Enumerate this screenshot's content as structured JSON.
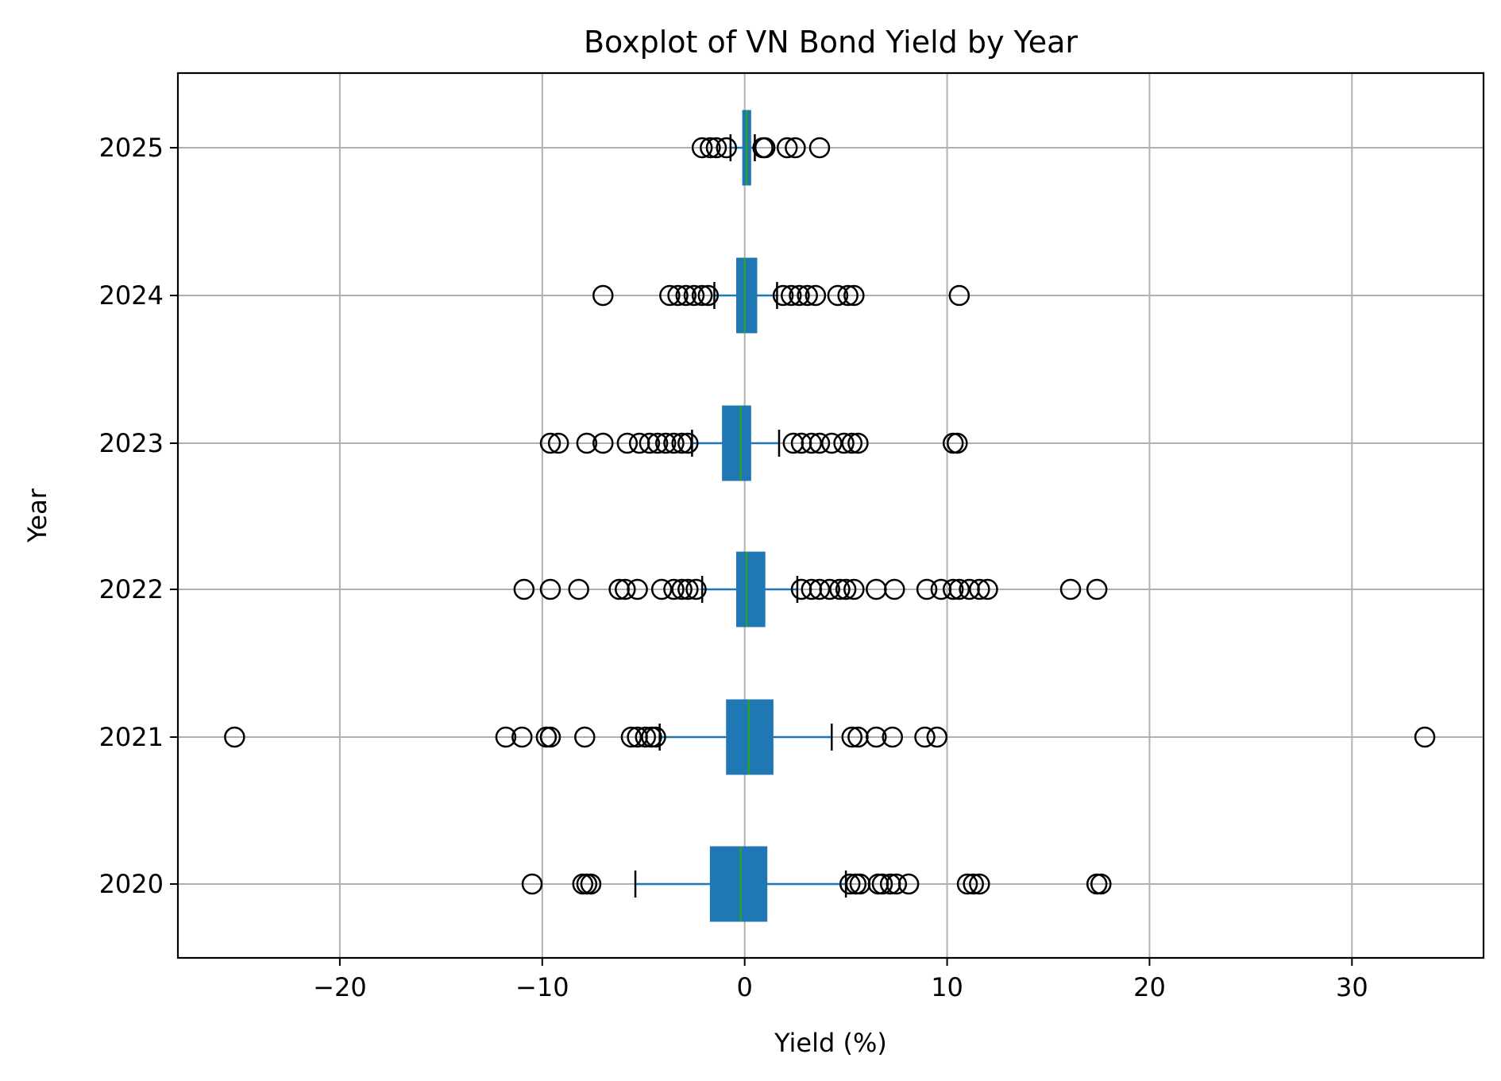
{
  "chart_data": {
    "type": "boxplot",
    "orientation": "horizontal",
    "title": "Boxplot of VN Bond Yield by Year",
    "xlabel": "Yield (%)",
    "ylabel": "Year",
    "xlim": [
      -28,
      36.5
    ],
    "x_ticks": [
      -20,
      -10,
      0,
      10,
      20,
      30
    ],
    "x_tick_labels": [
      "−20",
      "−10",
      "0",
      "10",
      "20",
      "30"
    ],
    "categories": [
      "2020",
      "2021",
      "2022",
      "2023",
      "2024",
      "2025"
    ],
    "grid": true,
    "colors": {
      "box": "#1f77b4",
      "median": "#2ca02c",
      "whisker": "#1f77b4",
      "cap": "#000000",
      "flier": "#000000",
      "grid": "#b0b0b0"
    },
    "series": [
      {
        "name": "2020",
        "whisker_low": -5.4,
        "q1": -1.7,
        "median": -0.2,
        "q3": 1.1,
        "whisker_high": 5.0,
        "outliers": [
          -10.5,
          -8.0,
          -7.8,
          -7.6,
          5.2,
          5.5,
          5.7,
          6.6,
          6.8,
          7.2,
          7.5,
          8.1,
          11.0,
          11.3,
          11.6,
          17.4,
          17.6
        ]
      },
      {
        "name": "2021",
        "whisker_low": -4.2,
        "q1": -0.9,
        "median": 0.2,
        "q3": 1.4,
        "whisker_high": 4.3,
        "outliers": [
          -25.2,
          -11.8,
          -11.0,
          -9.8,
          -9.6,
          -7.9,
          -5.6,
          -5.3,
          -4.9,
          -4.6,
          -4.4,
          5.3,
          5.6,
          6.5,
          7.3,
          8.9,
          9.5,
          33.6
        ]
      },
      {
        "name": "2022",
        "whisker_low": -2.1,
        "q1": -0.4,
        "median": 0.1,
        "q3": 1.0,
        "whisker_high": 2.6,
        "outliers": [
          -10.9,
          -9.6,
          -8.2,
          -6.2,
          -5.9,
          -5.3,
          -4.1,
          -3.5,
          -3.1,
          -2.8,
          -2.4,
          2.8,
          3.3,
          3.7,
          4.2,
          4.7,
          5.0,
          5.4,
          6.5,
          7.4,
          9.0,
          9.7,
          10.3,
          10.6,
          11.1,
          11.6,
          12.0,
          16.1,
          17.4
        ]
      },
      {
        "name": "2023",
        "whisker_low": -2.6,
        "q1": -1.1,
        "median": -0.2,
        "q3": 0.3,
        "whisker_high": 1.7,
        "outliers": [
          -9.6,
          -9.2,
          -7.8,
          -7.0,
          -5.8,
          -5.2,
          -4.7,
          -4.3,
          -3.9,
          -3.5,
          -3.1,
          -2.8,
          2.4,
          2.8,
          3.3,
          3.7,
          4.3,
          4.9,
          5.3,
          5.6,
          10.3,
          10.5
        ]
      },
      {
        "name": "2024",
        "whisker_low": -1.5,
        "q1": -0.4,
        "median": 0.0,
        "q3": 0.6,
        "whisker_high": 1.6,
        "outliers": [
          -7.0,
          -3.7,
          -3.3,
          -2.9,
          -2.5,
          -2.1,
          -1.8,
          1.9,
          2.3,
          2.7,
          3.1,
          3.5,
          4.6,
          5.1,
          5.4,
          10.6
        ]
      },
      {
        "name": "2025",
        "whisker_low": -0.7,
        "q1": -0.1,
        "median": 0.1,
        "q3": 0.3,
        "whisker_high": 0.5,
        "outliers": [
          -2.1,
          -1.7,
          -1.4,
          -0.9,
          0.9,
          1.0,
          2.1,
          2.5,
          3.7
        ]
      }
    ]
  }
}
